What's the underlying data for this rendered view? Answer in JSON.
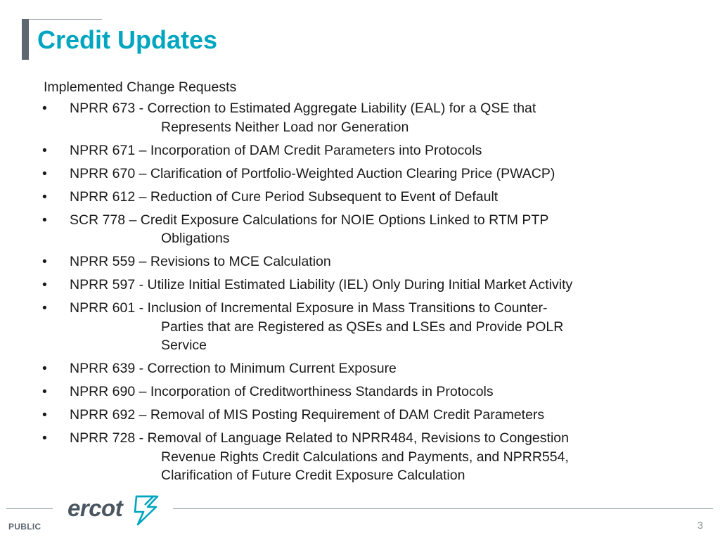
{
  "slide": {
    "title": "Credit Updates",
    "subtitle": "Implemented Change Requests",
    "items": [
      {
        "lines": [
          "NPRR 673 - Correction to Estimated Aggregate Liability (EAL) for a QSE that",
          "Represents Neither Load nor Generation"
        ]
      },
      {
        "lines": [
          "NPRR 671 – Incorporation of DAM Credit Parameters into Protocols"
        ]
      },
      {
        "lines": [
          "NPRR 670 – Clarification of Portfolio-Weighted Auction Clearing Price (PWACP)"
        ]
      },
      {
        "lines": [
          "NPRR 612 – Reduction of Cure Period Subsequent to Event of Default"
        ]
      },
      {
        "lines": [
          "SCR   778 – Credit Exposure Calculations for NOIE Options Linked to RTM PTP",
          "Obligations"
        ]
      },
      {
        "lines": [
          "NPRR 559 – Revisions to MCE Calculation"
        ]
      },
      {
        "lines": [
          "NPRR 597 - Utilize Initial Estimated Liability (IEL) Only During Initial Market Activity"
        ]
      },
      {
        "lines": [
          "NPRR 601 - Inclusion of Incremental Exposure in Mass Transitions to Counter-",
          "Parties that are Registered as QSEs and LSEs and Provide POLR",
          "Service"
        ]
      },
      {
        "lines": [
          "NPRR 639 - Correction to Minimum Current Exposure"
        ]
      },
      {
        "lines": [
          "NPRR 690 – Incorporation of Creditworthiness Standards in Protocols"
        ]
      },
      {
        "lines": [
          "NPRR 692 – Removal of MIS Posting Requirement of DAM Credit Parameters"
        ]
      },
      {
        "lines": [
          "NPRR 728  - Removal of Language Related to NPRR484, Revisions to Congestion",
          "Revenue Rights Credit Calculations and Payments, and NPRR554,",
          "Clarification of Future Credit Exposure Calculation"
        ]
      }
    ]
  },
  "footer": {
    "label": "PUBLIC",
    "page_number": "3",
    "logo_text": "ercot"
  },
  "colors": {
    "title": "#00a5c0",
    "accent_bar": "#5c6770",
    "logo": "#4a5660"
  },
  "icons": {
    "logo": "ercot-logo",
    "bullet": "bullet-dot"
  }
}
